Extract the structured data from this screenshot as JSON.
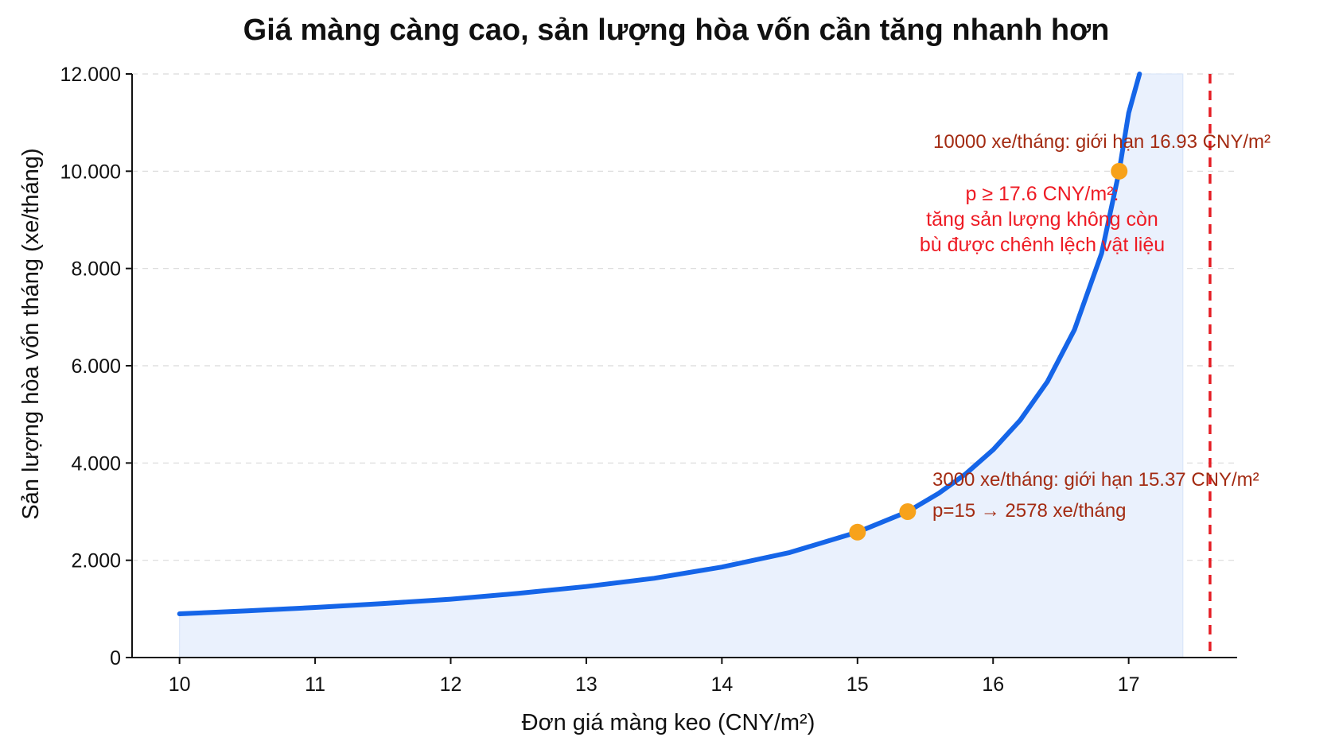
{
  "chart_data": {
    "type": "line",
    "title": "Giá màng càng cao, sản lượng hòa vốn cần tăng nhanh hơn",
    "xlabel": "Đơn giá màng keo (CNY/m²)",
    "ylabel": "Sản lượng hòa vốn tháng (xe/tháng)",
    "xlim": [
      9.65,
      17.8
    ],
    "ylim": [
      0,
      12000
    ],
    "x_ticks": [
      "10",
      "11",
      "12",
      "13",
      "14",
      "15",
      "16",
      "17"
    ],
    "y_ticks": [
      "0",
      "2.000",
      "4.000",
      "6.000",
      "8.000",
      "10.000",
      "12.000"
    ],
    "y_tick_values": [
      0,
      2000,
      4000,
      6000,
      8000,
      10000,
      12000
    ],
    "x_tick_values": [
      10,
      11,
      12,
      13,
      14,
      15,
      16,
      17
    ],
    "grid": "horizontal-dashed",
    "series": [
      {
        "color": "#1565e8",
        "x": [
          10.0,
          10.5,
          11.0,
          11.5,
          12.0,
          12.5,
          13.0,
          13.5,
          14.0,
          14.5,
          15.0,
          15.37,
          15.6,
          15.8,
          16.0,
          16.2,
          16.4,
          16.6,
          16.8,
          16.93,
          17.0,
          17.08
        ],
        "values": [
          900,
          960,
          1030,
          1110,
          1200,
          1320,
          1460,
          1630,
          1860,
          2160,
          2578,
          3000,
          3380,
          3780,
          4270,
          4880,
          5670,
          6740,
          8310,
          10000,
          11200,
          12000
        ]
      }
    ],
    "fill_region": {
      "x_from": 10,
      "x_to": 17.4,
      "color": "#eaf1fd"
    },
    "threshold_line": {
      "x": 17.6,
      "color": "#e51e25"
    },
    "points": [
      {
        "x": 15.0,
        "y": 2578,
        "label": "p=15 → 2578 xe/tháng"
      },
      {
        "x": 15.37,
        "y": 3000,
        "label": "3000 xe/tháng: giới hạn 15.37 CNY/m²"
      },
      {
        "x": 16.93,
        "y": 10000,
        "label": "10000 xe/tháng: giới hạn 16.93 CNY/m²"
      }
    ],
    "point_color": "#f7a21b",
    "threshold_note": [
      "p ≥ 17.6 CNY/m²:",
      "tăng sản lượng không còn",
      "bù được chênh lệch vật liệu"
    ]
  }
}
